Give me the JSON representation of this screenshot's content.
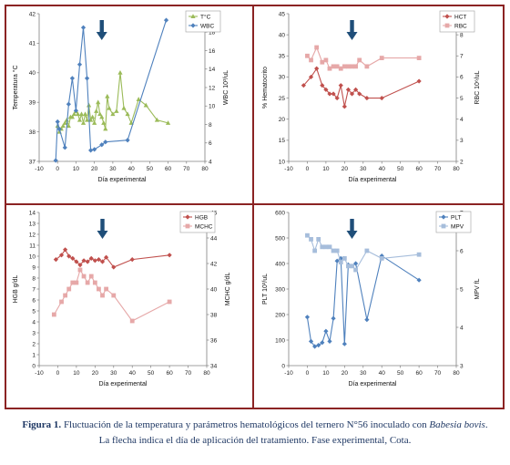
{
  "caption": {
    "label": "Figura 1.",
    "line1": "Fluctuación de la temperatura y parámetros hematológicos del ternero N°56 inoculado con",
    "species": "Babesia bovis",
    "line2": "La flecha indica el día de aplicación del  tratamiento. Fase experimental, Cota."
  },
  "colors": {
    "frame": "#8b2323",
    "arrow": "#1f4e79"
  },
  "chart_data": [
    {
      "type": "line",
      "xlabel": "Día experimental",
      "xlim": [
        -10,
        80
      ],
      "xticks": [
        -10,
        0,
        10,
        20,
        30,
        40,
        50,
        60,
        70,
        80
      ],
      "y_left": {
        "label": "Temperatura °C",
        "lim": [
          37,
          42
        ],
        "ticks": [
          37,
          38,
          39,
          40,
          41,
          42
        ]
      },
      "y_right": {
        "label": "WBC 10³/uL",
        "lim": [
          4,
          20
        ],
        "ticks": [
          4,
          6,
          8,
          10,
          12,
          14,
          16,
          18,
          20
        ]
      },
      "arrow_day": 24,
      "legend_position": "top-right",
      "series": [
        {
          "name": "T°C",
          "axis": "left",
          "color": "#9bbb59",
          "marker": "triangle",
          "x": [
            0,
            1,
            2,
            3,
            4,
            5,
            6,
            7,
            8,
            9,
            10,
            11,
            12,
            13,
            14,
            15,
            16,
            17,
            18,
            19,
            20,
            21,
            22,
            23,
            24,
            25,
            26,
            27,
            28,
            30,
            32,
            34,
            36,
            38,
            40,
            44,
            48,
            54,
            60
          ],
          "y": [
            38.2,
            38.0,
            38.1,
            38.2,
            38.3,
            38.4,
            38.2,
            38.5,
            38.5,
            38.6,
            38.7,
            38.6,
            38.4,
            38.6,
            38.3,
            38.6,
            38.4,
            38.9,
            38.4,
            38.5,
            38.3,
            38.7,
            39.0,
            38.6,
            38.5,
            38.3,
            38.1,
            39.2,
            38.8,
            38.6,
            38.7,
            40.0,
            38.8,
            38.6,
            38.3,
            39.1,
            38.9,
            38.4,
            38.3
          ]
        },
        {
          "name": "WBC",
          "axis": "right",
          "color": "#4f81bd",
          "marker": "diamond",
          "x": [
            -1,
            0,
            1,
            4,
            6,
            8,
            10,
            12,
            14,
            16,
            18,
            20,
            24,
            26,
            38,
            59
          ],
          "y": [
            4.1,
            8.3,
            7.5,
            5.5,
            10.2,
            13.0,
            9.5,
            14.5,
            18.5,
            13.0,
            5.2,
            5.3,
            5.8,
            6.1,
            6.3,
            19.3
          ]
        }
      ]
    },
    {
      "type": "line",
      "xlabel": "Día experimental",
      "xlim": [
        -10,
        80
      ],
      "xticks": [
        -10,
        0,
        10,
        20,
        30,
        40,
        50,
        60,
        70,
        80
      ],
      "y_left": {
        "label": "% Hematocrito",
        "lim": [
          10,
          45
        ],
        "ticks": [
          10,
          15,
          20,
          25,
          30,
          35,
          40,
          45
        ]
      },
      "y_right": {
        "label": "RBC 10⁶/uL",
        "lim": [
          2,
          9
        ],
        "ticks": [
          2,
          3,
          4,
          5,
          6,
          7,
          8,
          9
        ]
      },
      "arrow_day": 24,
      "legend_position": "top-right",
      "series": [
        {
          "name": "HCT",
          "axis": "left",
          "color": "#c0504d",
          "marker": "diamond",
          "x": [
            -2,
            2,
            5,
            8,
            10,
            12,
            14,
            16,
            18,
            20,
            22,
            24,
            26,
            28,
            32,
            40,
            60
          ],
          "y": [
            28,
            30,
            32,
            28,
            27,
            26,
            26,
            25,
            28,
            23,
            27,
            26,
            27,
            26,
            25,
            25,
            29
          ]
        },
        {
          "name": "RBC",
          "axis": "right",
          "color": "#e6a8a8",
          "marker": "square",
          "x": [
            0,
            2,
            5,
            8,
            10,
            12,
            14,
            16,
            18,
            20,
            22,
            24,
            26,
            28,
            32,
            40,
            60
          ],
          "y": [
            7.0,
            6.8,
            7.4,
            6.7,
            6.8,
            6.4,
            6.5,
            6.5,
            6.4,
            6.5,
            6.5,
            6.5,
            6.5,
            6.8,
            6.5,
            6.9,
            6.9
          ]
        }
      ]
    },
    {
      "type": "line",
      "xlabel": "Día experimental",
      "xlim": [
        -10,
        80
      ],
      "xticks": [
        -10,
        0,
        10,
        20,
        30,
        40,
        50,
        60,
        70,
        80
      ],
      "y_left": {
        "label": "HGB g/dL",
        "lim": [
          0,
          14
        ],
        "ticks": [
          0,
          1,
          2,
          3,
          4,
          5,
          6,
          7,
          8,
          9,
          10,
          11,
          12,
          13,
          14
        ]
      },
      "y_right": {
        "label": "MCHC g/dL",
        "lim": [
          34,
          46
        ],
        "ticks": [
          34,
          36,
          38,
          40,
          42,
          44,
          46
        ]
      },
      "arrow_day": 24,
      "legend_position": "top-right",
      "series": [
        {
          "name": "HGB",
          "axis": "left",
          "color": "#c0504d",
          "marker": "diamond",
          "x": [
            -1,
            2,
            4,
            6,
            8,
            10,
            12,
            14,
            16,
            18,
            20,
            22,
            24,
            26,
            30,
            40,
            60
          ],
          "y": [
            9.7,
            10.1,
            10.6,
            10.0,
            9.8,
            9.5,
            9.2,
            9.6,
            9.5,
            9.8,
            9.6,
            9.7,
            9.5,
            9.9,
            9.0,
            9.7,
            10.1
          ]
        },
        {
          "name": "MCHC",
          "axis": "right",
          "color": "#e6a8a8",
          "marker": "square",
          "x": [
            -2,
            2,
            4,
            6,
            8,
            10,
            12,
            14,
            16,
            18,
            20,
            22,
            24,
            26,
            30,
            40,
            60
          ],
          "y": [
            38.0,
            39.0,
            39.5,
            40.0,
            40.5,
            40.5,
            41.5,
            41.0,
            40.5,
            41.0,
            40.5,
            40.0,
            39.5,
            40.0,
            39.5,
            37.5,
            39.0
          ]
        }
      ]
    },
    {
      "type": "line",
      "xlabel": "Día experimental",
      "xlim": [
        -10,
        80
      ],
      "xticks": [
        -10,
        0,
        10,
        20,
        30,
        40,
        50,
        60,
        70,
        80
      ],
      "y_left": {
        "label": "PLT 10³/uL",
        "lim": [
          0,
          600
        ],
        "ticks": [
          0,
          100,
          200,
          300,
          400,
          500,
          600
        ]
      },
      "y_right": {
        "label": "MPV fL",
        "lim": [
          3,
          7
        ],
        "ticks": [
          3,
          4,
          5,
          6,
          7
        ]
      },
      "arrow_day": 24,
      "legend_position": "top-right",
      "series": [
        {
          "name": "PLT",
          "axis": "left",
          "color": "#4f81bd",
          "marker": "diamond",
          "x": [
            0,
            2,
            4,
            6,
            8,
            10,
            12,
            14,
            16,
            18,
            20,
            22,
            24,
            26,
            32,
            40,
            60
          ],
          "y": [
            190,
            95,
            75,
            80,
            90,
            135,
            95,
            185,
            410,
            420,
            85,
            395,
            390,
            400,
            180,
            430,
            335
          ]
        },
        {
          "name": "MPV",
          "axis": "right",
          "color": "#a6bddb",
          "marker": "square",
          "x": [
            0,
            2,
            4,
            6,
            8,
            10,
            12,
            14,
            16,
            18,
            20,
            22,
            24,
            26,
            32,
            40,
            60
          ],
          "y": [
            6.4,
            6.3,
            6.0,
            6.3,
            6.1,
            6.1,
            6.1,
            6.0,
            6.0,
            5.7,
            5.8,
            5.6,
            5.6,
            5.5,
            6.0,
            5.8,
            5.9
          ]
        }
      ]
    }
  ]
}
